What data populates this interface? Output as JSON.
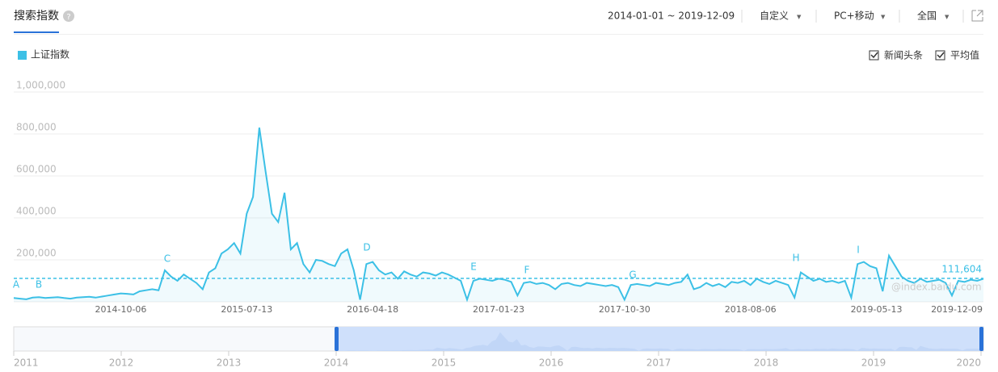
{
  "tab": "搜索指数",
  "date_range": "2014-01-01 ~ 2019-12-09",
  "dropdowns": [
    "自定义",
    "PC+移动",
    "全国"
  ],
  "checkboxes": [
    "新闻头条",
    "平均值"
  ],
  "chart_data": {
    "type": "line",
    "series": [
      {
        "name": "上证指数",
        "color": "#3cc0e6",
        "values": [
          18000,
          15000,
          12000,
          20000,
          22000,
          18000,
          20000,
          22000,
          18000,
          15000,
          20000,
          22000,
          24000,
          20000,
          25000,
          30000,
          35000,
          40000,
          38000,
          35000,
          50000,
          55000,
          60000,
          55000,
          150000,
          120000,
          100000,
          130000,
          110000,
          90000,
          60000,
          140000,
          160000,
          230000,
          250000,
          280000,
          230000,
          420000,
          500000,
          830000,
          620000,
          420000,
          380000,
          520000,
          250000,
          280000,
          180000,
          140000,
          200000,
          195000,
          180000,
          170000,
          230000,
          250000,
          150000,
          10000,
          180000,
          190000,
          150000,
          130000,
          140000,
          110000,
          145000,
          130000,
          120000,
          140000,
          135000,
          125000,
          140000,
          130000,
          115000,
          100000,
          10000,
          100000,
          110000,
          105000,
          100000,
          110000,
          105000,
          95000,
          30000,
          90000,
          95000,
          85000,
          90000,
          80000,
          60000,
          85000,
          90000,
          80000,
          75000,
          90000,
          85000,
          80000,
          75000,
          80000,
          70000,
          10000,
          80000,
          85000,
          80000,
          75000,
          90000,
          85000,
          80000,
          90000,
          95000,
          130000,
          60000,
          70000,
          90000,
          75000,
          85000,
          70000,
          95000,
          90000,
          100000,
          80000,
          110000,
          95000,
          85000,
          100000,
          90000,
          80000,
          20000,
          140000,
          120000,
          100000,
          110000,
          95000,
          100000,
          90000,
          100000,
          20000,
          180000,
          190000,
          170000,
          160000,
          50000,
          220000,
          170000,
          120000,
          100000,
          90000,
          110000,
          95000,
          100000,
          105000,
          90000,
          30000,
          100000,
          95000,
          105000,
          100000,
          110000
        ]
      }
    ],
    "categories": [
      null,
      null,
      null,
      null,
      null,
      null,
      null,
      null,
      null,
      null,
      null,
      null,
      null,
      null,
      null,
      null,
      null,
      "2014-10-06",
      null,
      null,
      null,
      null,
      null,
      null,
      null,
      null,
      null,
      null,
      null,
      null,
      null,
      null,
      null,
      null,
      null,
      null,
      null,
      "2015-07-13",
      null,
      null,
      null,
      null,
      null,
      null,
      null,
      null,
      null,
      null,
      null,
      null,
      null,
      null,
      null,
      null,
      null,
      null,
      null,
      "2016-04-18",
      null,
      null,
      null,
      null,
      null,
      null,
      null,
      null,
      null,
      null,
      null,
      null,
      null,
      null,
      null,
      null,
      null,
      null,
      null,
      "2017-01-23",
      null,
      null,
      null,
      null,
      null,
      null,
      null,
      null,
      null,
      null,
      null,
      null,
      null,
      null,
      null,
      null,
      null,
      null,
      null,
      "2017-10-30",
      null,
      null,
      null,
      null,
      null,
      null,
      null,
      null,
      null,
      null,
      null,
      null,
      null,
      null,
      null,
      null,
      null,
      null,
      null,
      "2018-08-06",
      null,
      null,
      null,
      null,
      null,
      null,
      null,
      null,
      null,
      null,
      null,
      null,
      null,
      null,
      null,
      null,
      null,
      null,
      null,
      "2019-05-13",
      null,
      null,
      null,
      null,
      null,
      null,
      null,
      null,
      null,
      null,
      null,
      null,
      null,
      null,
      null,
      null,
      "2019-12-09"
    ],
    "ylim": [
      0,
      1000000
    ],
    "yticks": [
      {
        "value": 200000,
        "label": "200,000"
      },
      {
        "value": 400000,
        "label": "400,000"
      },
      {
        "value": 600000,
        "label": "600,000"
      },
      {
        "value": 800000,
        "label": "800,000"
      },
      {
        "value": 1000000,
        "label": "1,000,000"
      }
    ],
    "grid": true,
    "reference_line": {
      "value": 111604,
      "label": "111,604"
    },
    "annotations": [
      "A",
      "B",
      "C",
      "D",
      "E",
      "F",
      "G",
      "H",
      "I"
    ],
    "watermark": "@index.baidu.com",
    "navigator_ticks": [
      2011,
      2012,
      2013,
      2014,
      2015,
      2016,
      2017,
      2018,
      2019,
      2020
    ]
  }
}
